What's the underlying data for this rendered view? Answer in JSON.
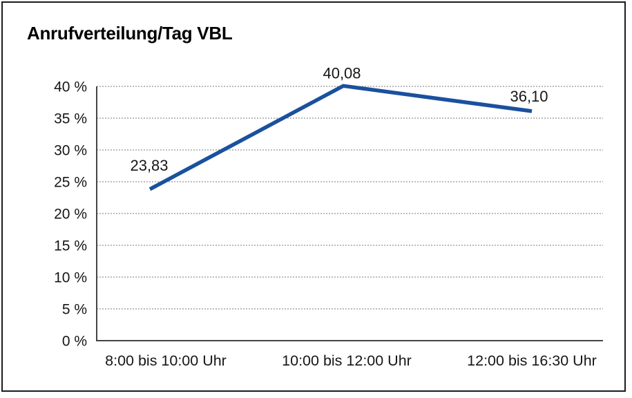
{
  "title": "Anrufverteilung/Tag VBL",
  "colors": {
    "line": "#1a519e",
    "grid": "#777777",
    "axis": "#444444",
    "frame": "#1a1a1a",
    "text": "#161616",
    "background": "#ffffff"
  },
  "chart_data": {
    "type": "line",
    "title": "Anrufverteilung/Tag VBL",
    "categories": [
      "8:00 bis 10:00 Uhr",
      "10:00 bis 12:00 Uhr",
      "12:00 bis 16:30 Uhr"
    ],
    "values": [
      23.83,
      40.08,
      36.1
    ],
    "point_labels": [
      "23,83",
      "40,08",
      "36,10"
    ],
    "xlabel": "",
    "ylabel": "",
    "ylim": [
      0,
      40
    ],
    "ytick_step": 5,
    "ytick_labels": [
      "0 %",
      "5 %",
      "10 %",
      "15 %",
      "20 %",
      "25 %",
      "30 %",
      "35 %",
      "40 %"
    ],
    "grid": "horizontal-dotted",
    "legend": "none"
  }
}
